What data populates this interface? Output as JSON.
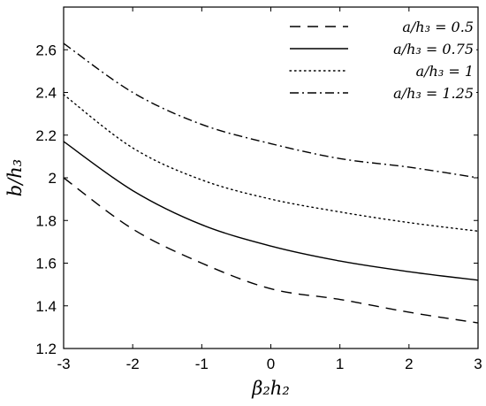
{
  "chart_data": {
    "type": "line",
    "xlabel": "β₂h₂",
    "ylabel": "b/h₃",
    "xlim": [
      -3,
      3
    ],
    "ylim": [
      1.2,
      2.8
    ],
    "xticks": [
      -3,
      -2,
      -1,
      0,
      1,
      2,
      3
    ],
    "yticks": [
      1.2,
      1.4,
      1.6,
      1.8,
      2.0,
      2.2,
      2.4,
      2.6
    ],
    "xtick_labels": [
      "-3",
      "-2",
      "-1",
      "0",
      "1",
      "2",
      "3"
    ],
    "ytick_labels": [
      "1.2",
      "1.4",
      "1.6",
      "1.8",
      "2",
      "2.2",
      "2.4",
      "2.6"
    ],
    "grid": false,
    "legend_position": "top-right",
    "x": [
      -3,
      -2,
      -1,
      0,
      1,
      2,
      3
    ],
    "series": [
      {
        "name": "a/h₃ = 0.5",
        "dash": "dashed",
        "values": [
          2.0,
          1.76,
          1.6,
          1.48,
          1.43,
          1.37,
          1.32
        ]
      },
      {
        "name": "a/h₃ = 0.75",
        "dash": "solid",
        "values": [
          2.17,
          1.94,
          1.78,
          1.68,
          1.61,
          1.56,
          1.52
        ]
      },
      {
        "name": "a/h₃ = 1",
        "dash": "dotted",
        "values": [
          2.39,
          2.14,
          1.99,
          1.9,
          1.84,
          1.79,
          1.75
        ]
      },
      {
        "name": "a/h₃ = 1.25",
        "dash": "dash-dot",
        "values": [
          2.63,
          2.4,
          2.25,
          2.16,
          2.09,
          2.05,
          2.0
        ]
      }
    ]
  }
}
